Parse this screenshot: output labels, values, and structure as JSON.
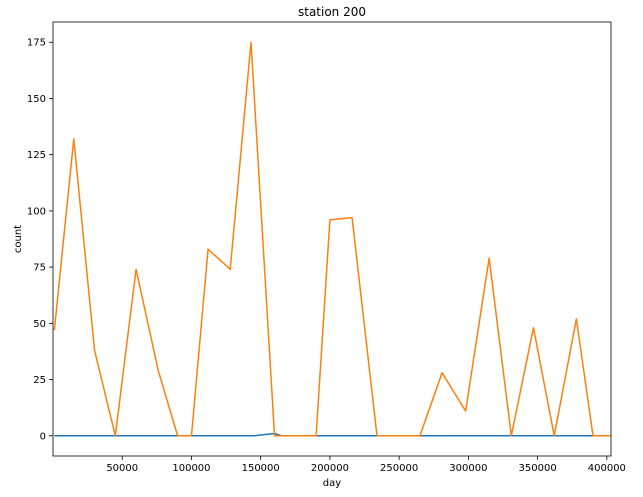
{
  "chart_data": {
    "type": "line",
    "title": "station 200",
    "xlabel": "day",
    "ylabel": "count",
    "xlim": [
      0,
      403000
    ],
    "ylim": [
      -9,
      184
    ],
    "grid": false,
    "x_ticks": [
      50000,
      100000,
      150000,
      200000,
      250000,
      300000,
      350000,
      400000
    ],
    "x_tick_labels": [
      "50000",
      "100000",
      "150000",
      "200000",
      "250000",
      "300000",
      "350000",
      "400000"
    ],
    "y_ticks": [
      0,
      25,
      50,
      75,
      100,
      125,
      150,
      175
    ],
    "y_tick_labels": [
      "0",
      "25",
      "50",
      "75",
      "100",
      "125",
      "150",
      "175"
    ],
    "series": [
      {
        "color": "#1f77b4",
        "x": [
          1000,
          145000,
          160000,
          165000,
          403000
        ],
        "y": [
          0,
          0,
          1,
          0,
          0
        ]
      },
      {
        "color": "#ff7f0e",
        "x": [
          1000,
          15000,
          30000,
          45000,
          60000,
          76000,
          90000,
          100000,
          112000,
          128000,
          143000,
          160000,
          168000,
          190000,
          200000,
          216000,
          234000,
          250000,
          265000,
          281000,
          298000,
          315000,
          331000,
          347000,
          362000,
          378000,
          390000,
          403000
        ],
        "y": [
          47,
          132,
          38,
          0,
          74,
          29,
          0,
          0,
          83,
          74,
          175,
          0,
          0,
          0,
          96,
          97,
          0,
          0,
          0,
          28,
          11,
          79,
          0,
          48,
          0,
          52,
          0,
          0
        ]
      }
    ]
  }
}
